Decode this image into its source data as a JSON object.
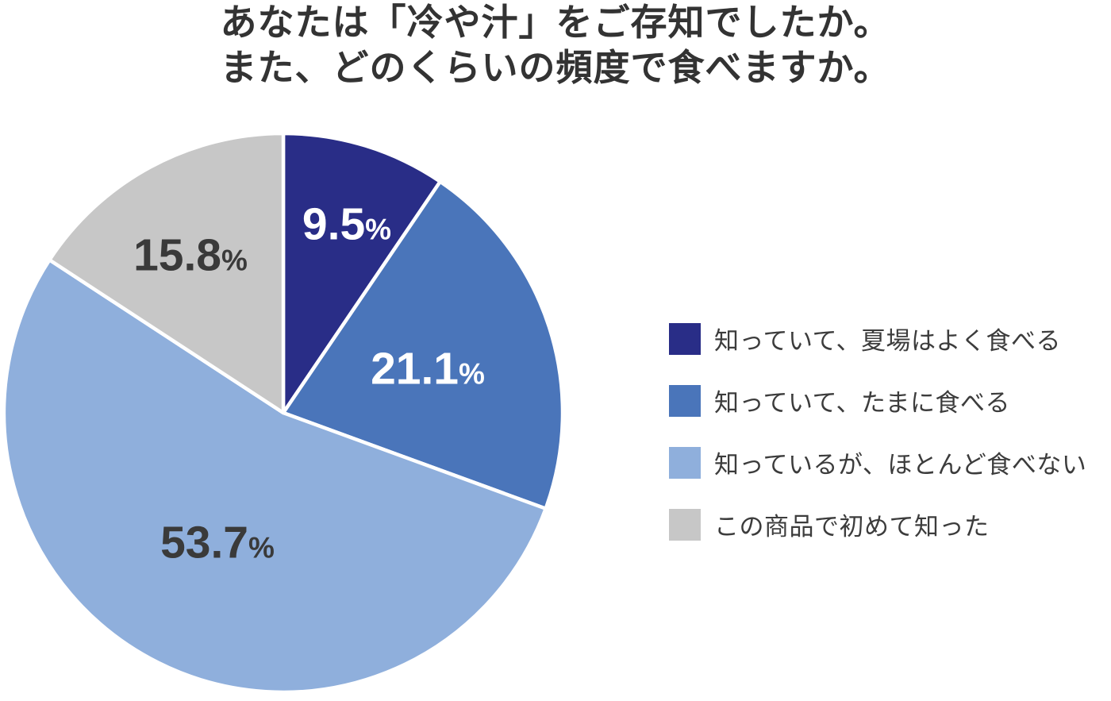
{
  "title": {
    "line1": "あなたは「冷や汁」をご存知でしたか。",
    "line2": "また、どのくらいの頻度で食べますか。"
  },
  "chart_data": {
    "type": "pie",
    "title": "あなたは「冷や汁」をご存知でしたか。また、どのくらいの頻度で食べますか。",
    "unit": "%",
    "start_angle_deg": -90,
    "direction": "clockwise",
    "legend_position": "right",
    "slice_border_color": "#ffffff",
    "slices": [
      {
        "label": "知っていて、夏場はよく食べる",
        "value": 9.5,
        "color": "#292d87",
        "label_color": "#ffffff"
      },
      {
        "label": "知っていて、たまに食べる",
        "value": 21.1,
        "color": "#4a75ba",
        "label_color": "#ffffff"
      },
      {
        "label": "知っているが、ほとんど食べない",
        "value": 53.7,
        "color": "#8fafdc",
        "label_color": "#3a3a3a"
      },
      {
        "label": "この商品で初めて知った",
        "value": 15.8,
        "color": "#c7c7c7",
        "label_color": "#3a3a3a"
      }
    ]
  }
}
